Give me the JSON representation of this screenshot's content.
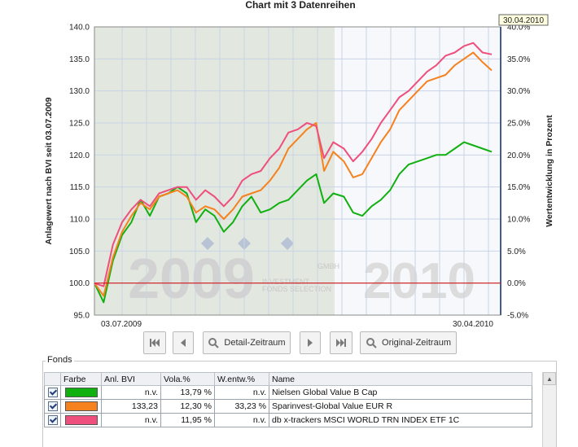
{
  "chart_data": {
    "type": "line",
    "title": "Chart mit 3 Datenreihen",
    "ylabel": "Anlagewert nach BVI seit 03.07.2009",
    "ylabel_right": "Wertentwicklung in Prozent",
    "ylim": [
      95,
      140
    ],
    "ylim_right": [
      -5,
      40
    ],
    "yticks": [
      "95.0",
      "100.0",
      "105.0",
      "110.0",
      "115.0",
      "120.0",
      "125.0",
      "130.0",
      "135.0",
      "140.0"
    ],
    "yticks_right": [
      "-5.0%",
      "0.0%",
      "5.0%",
      "10.0%",
      "15.0%",
      "20.0%",
      "25.0%",
      "30.0%",
      "35.0%",
      "40.0%"
    ],
    "x_start_label": "03.07.2009",
    "x_end_label": "30.04.2010",
    "cursor_date_label": "30.04.2010",
    "year_labels": [
      "2009",
      "2010"
    ],
    "watermark": {
      "line1": "GMBH",
      "line2": "INVESTMENT",
      "line3": "FONDS SELECTION"
    },
    "baseline": 100,
    "grid": true,
    "x": [
      "2009-07-03",
      "2009-07-10",
      "2009-07-17",
      "2009-07-24",
      "2009-07-31",
      "2009-08-07",
      "2009-08-14",
      "2009-08-21",
      "2009-08-28",
      "2009-09-04",
      "2009-09-11",
      "2009-09-18",
      "2009-09-25",
      "2009-10-02",
      "2009-10-09",
      "2009-10-16",
      "2009-10-23",
      "2009-10-30",
      "2009-11-06",
      "2009-11-13",
      "2009-11-20",
      "2009-11-27",
      "2009-12-04",
      "2009-12-11",
      "2009-12-18",
      "2009-12-24",
      "2009-12-31",
      "2010-01-08",
      "2010-01-15",
      "2010-01-22",
      "2010-01-29",
      "2010-02-05",
      "2010-02-12",
      "2010-02-19",
      "2010-02-26",
      "2010-03-05",
      "2010-03-12",
      "2010-03-19",
      "2010-03-26",
      "2010-04-02",
      "2010-04-09",
      "2010-04-16",
      "2010-04-23",
      "2010-04-30"
    ],
    "series": [
      {
        "name": "Nielsen Global Value B Cap",
        "color": "#10b010",
        "values": [
          100.0,
          97.0,
          103.5,
          107.5,
          109.5,
          113.0,
          110.5,
          113.5,
          114.0,
          115.0,
          114.0,
          109.5,
          111.5,
          110.5,
          108.0,
          109.5,
          112.0,
          113.5,
          111.0,
          111.5,
          112.5,
          113.0,
          114.5,
          116.0,
          117.0,
          112.5,
          114.0,
          113.5,
          111.0,
          110.5,
          112.0,
          113.0,
          114.5,
          117.0,
          118.5,
          119.0,
          119.5,
          120.0,
          120.0,
          121.0,
          122.0,
          121.5,
          121.0,
          120.5
        ]
      },
      {
        "name": "Sparinvest-Global Value EUR R",
        "color": "#f5821e",
        "values": [
          100.0,
          98.0,
          104.0,
          108.0,
          110.5,
          112.5,
          111.5,
          113.5,
          114.0,
          114.5,
          113.5,
          111.0,
          112.0,
          111.5,
          110.0,
          111.5,
          113.5,
          114.0,
          114.5,
          116.0,
          118.0,
          121.0,
          122.5,
          124.0,
          125.0,
          117.5,
          120.5,
          119.0,
          116.5,
          117.0,
          119.5,
          122.0,
          124.0,
          127.0,
          128.5,
          130.0,
          131.5,
          132.0,
          132.5,
          134.0,
          135.0,
          136.0,
          134.5,
          133.2
        ]
      },
      {
        "name": "db x-trackers MSCI WORLD TRN INDEX ETF 1C",
        "color": "#ee4f7d",
        "values": [
          100.0,
          99.5,
          106.0,
          109.5,
          111.5,
          113.0,
          112.0,
          114.0,
          114.5,
          115.0,
          115.0,
          113.0,
          114.5,
          113.5,
          112.0,
          113.5,
          116.0,
          117.0,
          117.5,
          119.5,
          121.0,
          123.5,
          124.0,
          125.0,
          124.5,
          119.5,
          122.0,
          121.0,
          119.0,
          120.5,
          122.5,
          125.0,
          127.0,
          129.0,
          130.0,
          131.5,
          133.0,
          134.0,
          135.5,
          136.0,
          137.0,
          137.5,
          136.0,
          135.7
        ]
      }
    ]
  },
  "nav": {
    "first_icon": "skip-first-icon",
    "prev_icon": "step-back-icon",
    "detail_label": "Detail-Zeitraum",
    "detail_icon": "magnifier-icon",
    "next_icon": "step-forward-icon",
    "last_icon": "skip-last-icon",
    "original_label": "Original-Zeitraum",
    "original_icon": "magnifier-icon"
  },
  "fonds": {
    "title": "Fonds",
    "columns": [
      "",
      "Farbe",
      "Anl. BVI",
      "Vola.%",
      "W.entw.%",
      "Name"
    ],
    "rows": [
      {
        "checked": true,
        "color": "#10b010",
        "anl_bvi": "n.v.",
        "vola": "13,79 %",
        "wentw": "n.v.",
        "name": "Nielsen Global Value B Cap"
      },
      {
        "checked": true,
        "color": "#f5821e",
        "anl_bvi": "133,23",
        "vola": "12,30 %",
        "wentw": "33,23 %",
        "name": "Sparinvest-Global Value EUR R"
      },
      {
        "checked": true,
        "color": "#ee4f7d",
        "anl_bvi": "n.v.",
        "vola": "11,95 %",
        "wentw": "n.v.",
        "name": "db x-trackers MSCI WORLD TRN INDEX ETF 1C"
      }
    ]
  }
}
